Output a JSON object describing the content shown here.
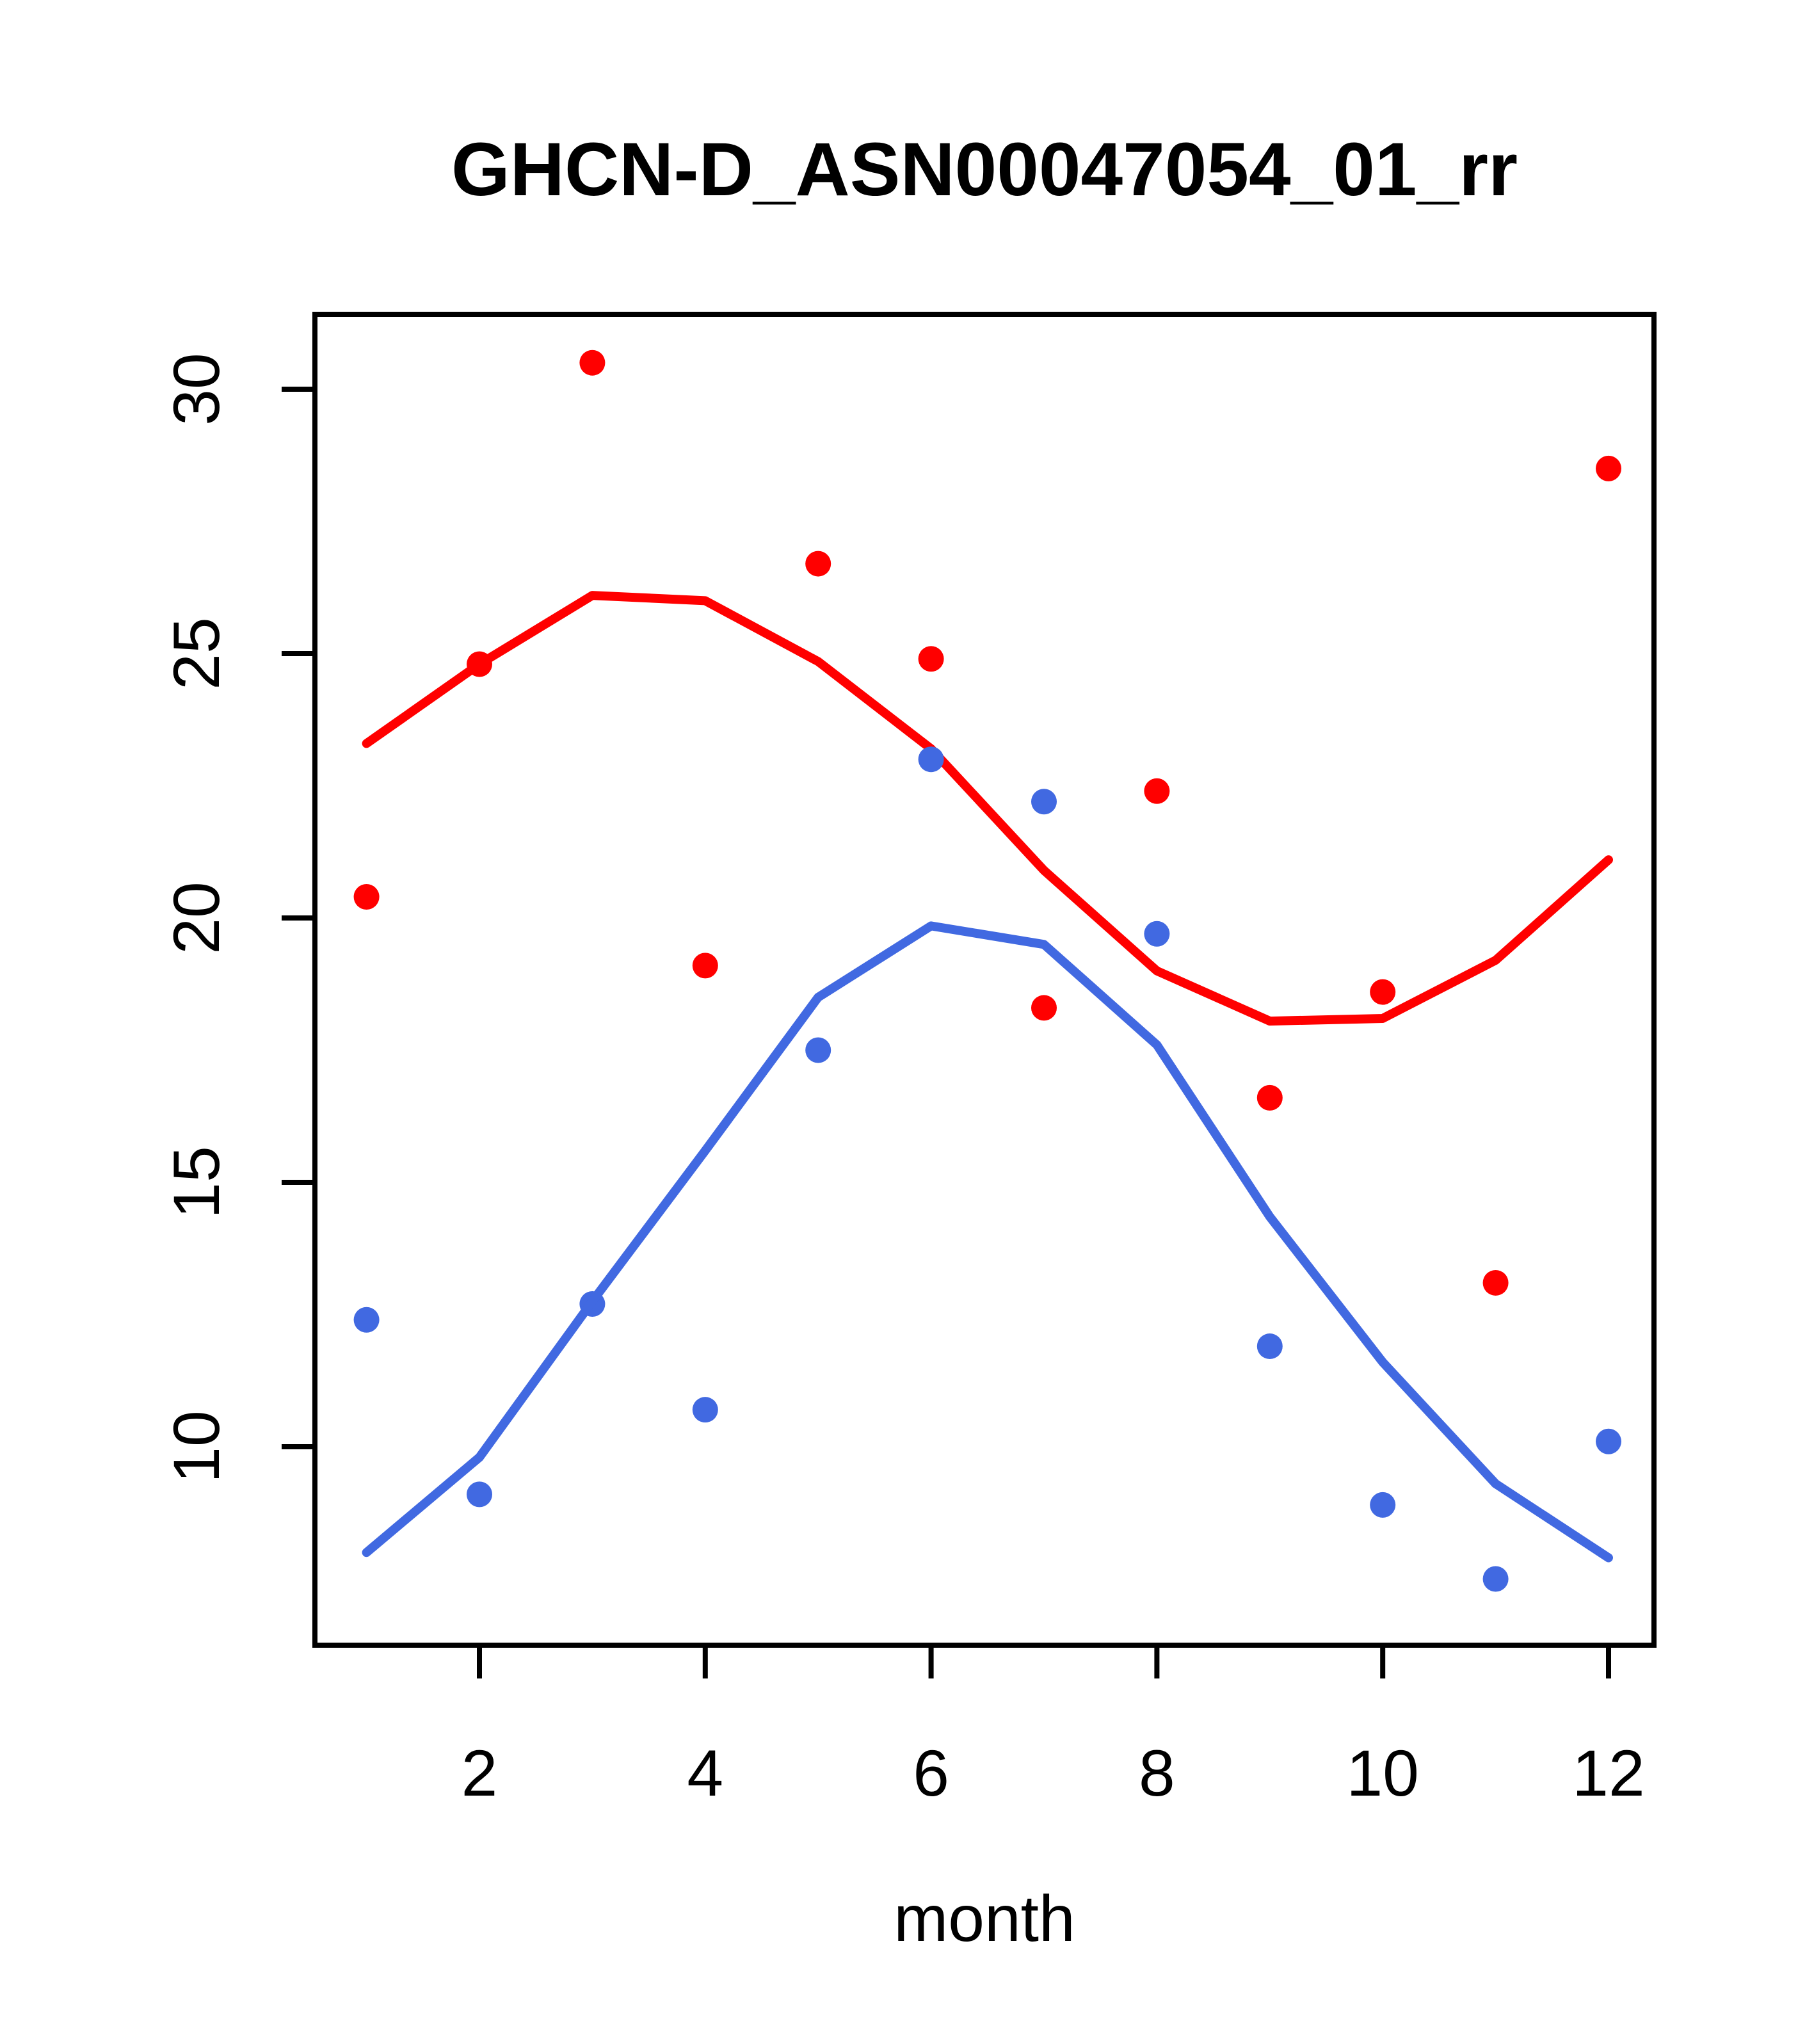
{
  "chart_data": {
    "type": "scatter",
    "title": "GHCN-D_ASN00047054_01_rr",
    "xlabel": "month",
    "ylabel": "",
    "x_ticks": [
      2,
      4,
      6,
      8,
      10,
      12
    ],
    "y_ticks": [
      10,
      15,
      20,
      25,
      30
    ],
    "xlim": [
      0.54,
      12.4
    ],
    "ylim": [
      6.25,
      31.4
    ],
    "grid": false,
    "legend": "none",
    "x": [
      1,
      2,
      3,
      4,
      5,
      6,
      7,
      8,
      9,
      10,
      11,
      12
    ],
    "series": [
      {
        "name": "red points",
        "kind": "points",
        "color": "#ff0000",
        "values": [
          20.4,
          24.8,
          30.5,
          19.1,
          26.7,
          24.9,
          18.3,
          22.4,
          16.6,
          18.6,
          13.1,
          28.5
        ]
      },
      {
        "name": "red lowess line",
        "kind": "line",
        "color": "#ff0000",
        "values": [
          23.3,
          24.8,
          26.1,
          26.0,
          24.85,
          23.2,
          20.9,
          19.0,
          18.05,
          18.1,
          19.2,
          21.1
        ]
      },
      {
        "name": "blue points",
        "kind": "points",
        "color": "#4169e1",
        "values": [
          12.4,
          9.1,
          12.7,
          10.7,
          17.5,
          23.0,
          22.2,
          19.7,
          11.9,
          8.9,
          7.5,
          10.1
        ]
      },
      {
        "name": "blue lowess line",
        "kind": "line",
        "color": "#4169e1",
        "values": [
          8.0,
          9.8,
          12.75,
          15.6,
          18.5,
          19.85,
          19.5,
          17.6,
          14.35,
          11.6,
          9.3,
          7.9
        ]
      }
    ]
  }
}
